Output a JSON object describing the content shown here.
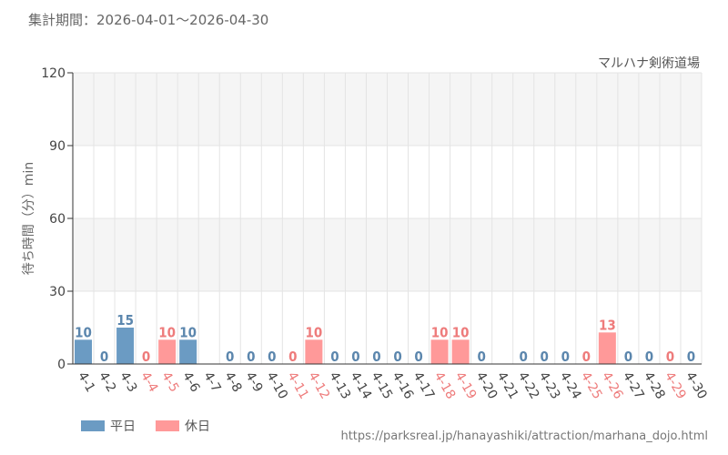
{
  "header": {
    "period": "集計期間：2026-04-01～2026-04-30"
  },
  "chart_data": {
    "type": "bar",
    "title": "マルハナ剣術道場",
    "ylabel": "待ち時間（分）min",
    "ylim": [
      0,
      120
    ],
    "yticks": [
      0,
      30,
      60,
      90,
      120
    ],
    "grid": true,
    "legend_position": "bottom-left",
    "categories": [
      "4-1",
      "4-2",
      "4-3",
      "4-4",
      "4-5",
      "4-6",
      "4-7",
      "4-8",
      "4-9",
      "4-10",
      "4-11",
      "4-12",
      "4-13",
      "4-14",
      "4-15",
      "4-16",
      "4-17",
      "4-18",
      "4-19",
      "4-20",
      "4-21",
      "4-22",
      "4-23",
      "4-24",
      "4-25",
      "4-26",
      "4-27",
      "4-28",
      "4-29",
      "4-30"
    ],
    "values": [
      10,
      0,
      15,
      0,
      10,
      10,
      null,
      0,
      0,
      0,
      0,
      10,
      0,
      0,
      0,
      0,
      0,
      10,
      10,
      0,
      null,
      0,
      0,
      0,
      0,
      13,
      0,
      0,
      0,
      0
    ],
    "day_type": [
      "weekday",
      "weekday",
      "weekday",
      "holiday",
      "holiday",
      "weekday",
      "weekday",
      "weekday",
      "weekday",
      "weekday",
      "holiday",
      "holiday",
      "weekday",
      "weekday",
      "weekday",
      "weekday",
      "weekday",
      "holiday",
      "holiday",
      "weekday",
      "weekday",
      "weekday",
      "weekday",
      "weekday",
      "holiday",
      "holiday",
      "weekday",
      "weekday",
      "holiday",
      "weekday"
    ],
    "series": [
      {
        "name": "平日",
        "key": "weekday",
        "color": "#6b9bc3"
      },
      {
        "name": "休日",
        "key": "holiday",
        "color": "#ff9999"
      }
    ],
    "colors": {
      "weekday_label": "#5b86ad",
      "holiday_label": "#ee7b7b",
      "band": "#f5f5f5",
      "grid": "#e4e4e4"
    }
  },
  "legend": {
    "weekday": "平日",
    "holiday": "休日"
  },
  "footer": {
    "source": "https://parksreal.jp/hanayashiki/attraction/marhana_dojo.html"
  }
}
